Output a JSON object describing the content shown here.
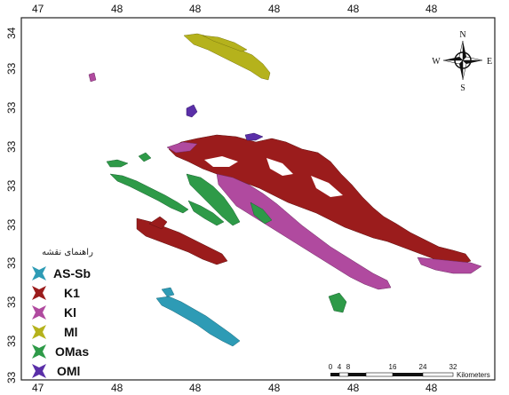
{
  "map": {
    "lon_labels": [
      "47",
      "48",
      "48",
      "48",
      "48",
      "48"
    ],
    "lon_labels_bottom": [
      "47",
      "48",
      "48",
      "48",
      "48",
      "48"
    ],
    "lat_labels": [
      "34",
      "33",
      "33",
      "33",
      "33",
      "33",
      "33",
      "33",
      "33",
      "33"
    ]
  },
  "legend": {
    "title": "راهنمای نقشه",
    "items": [
      {
        "label": "AS-Sb",
        "color": "#2e9bb5"
      },
      {
        "label": "K1",
        "color": "#9b1c1c"
      },
      {
        "label": "Kl",
        "color": "#b04a9f"
      },
      {
        "label": "Ml",
        "color": "#b5b21c"
      },
      {
        "label": "OMas",
        "color": "#2e9a48"
      },
      {
        "label": "OMl",
        "color": "#5a2fa8"
      }
    ]
  },
  "compass": {
    "n": "N",
    "s": "S",
    "e": "E",
    "w": "W"
  },
  "scale": {
    "ticks": [
      "0",
      "4",
      "8",
      "16",
      "24",
      "32"
    ],
    "unit": "Kilometers"
  }
}
